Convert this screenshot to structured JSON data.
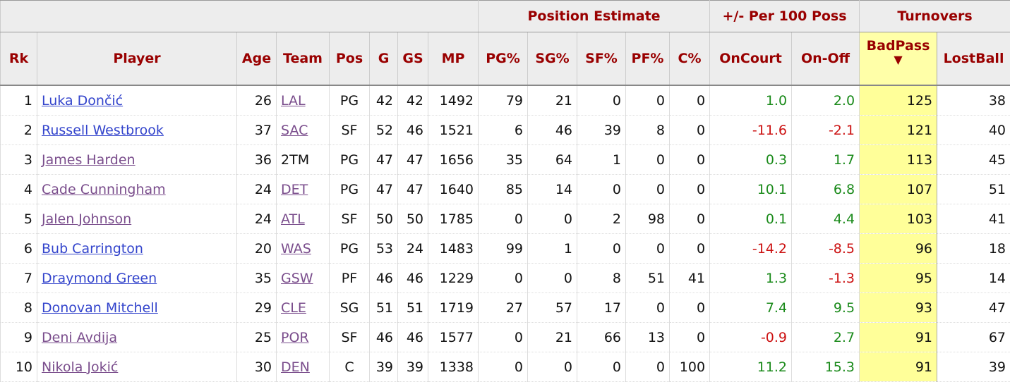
{
  "groups": {
    "position": "Position Estimate",
    "plusminus": "+/- Per 100 Poss",
    "turnovers": "Turnovers"
  },
  "columns": [
    "Rk",
    "Player",
    "Age",
    "Team",
    "Pos",
    "G",
    "GS",
    "MP",
    "PG%",
    "SG%",
    "SF%",
    "PF%",
    "C%",
    "OnCourt",
    "On-Off",
    "BadPass",
    "LostBall"
  ],
  "sort_indicator": "▼",
  "colors": {
    "positive": "#1a8a1a",
    "negative": "#cc1111",
    "sorted_column": "#ffff99",
    "header_text": "#990000"
  },
  "rows": [
    {
      "rk": "1",
      "player": "Luka Dončić",
      "visited": false,
      "age": "26",
      "team": "LAL",
      "team_link": true,
      "pos": "PG",
      "g": "42",
      "gs": "42",
      "mp": "1492",
      "pg": "79",
      "sg": "21",
      "sf": "0",
      "pf": "0",
      "c": "0",
      "oncourt": "1.0",
      "onoff": "2.0",
      "badpass": "125",
      "lostball": "38"
    },
    {
      "rk": "2",
      "player": "Russell Westbrook",
      "visited": false,
      "age": "37",
      "team": "SAC",
      "team_link": true,
      "pos": "SF",
      "g": "52",
      "gs": "46",
      "mp": "1521",
      "pg": "6",
      "sg": "46",
      "sf": "39",
      "pf": "8",
      "c": "0",
      "oncourt": "-11.6",
      "onoff": "-2.1",
      "badpass": "121",
      "lostball": "40"
    },
    {
      "rk": "3",
      "player": "James Harden",
      "visited": true,
      "age": "36",
      "team": "2TM",
      "team_link": false,
      "pos": "PG",
      "g": "47",
      "gs": "47",
      "mp": "1656",
      "pg": "35",
      "sg": "64",
      "sf": "1",
      "pf": "0",
      "c": "0",
      "oncourt": "0.3",
      "onoff": "1.7",
      "badpass": "113",
      "lostball": "45"
    },
    {
      "rk": "4",
      "player": "Cade Cunningham",
      "visited": true,
      "age": "24",
      "team": "DET",
      "team_link": true,
      "pos": "PG",
      "g": "47",
      "gs": "47",
      "mp": "1640",
      "pg": "85",
      "sg": "14",
      "sf": "0",
      "pf": "0",
      "c": "0",
      "oncourt": "10.1",
      "onoff": "6.8",
      "badpass": "107",
      "lostball": "51"
    },
    {
      "rk": "5",
      "player": "Jalen Johnson",
      "visited": true,
      "age": "24",
      "team": "ATL",
      "team_link": true,
      "pos": "SF",
      "g": "50",
      "gs": "50",
      "mp": "1785",
      "pg": "0",
      "sg": "0",
      "sf": "2",
      "pf": "98",
      "c": "0",
      "oncourt": "0.1",
      "onoff": "4.4",
      "badpass": "103",
      "lostball": "41"
    },
    {
      "rk": "6",
      "player": "Bub Carrington",
      "visited": false,
      "age": "20",
      "team": "WAS",
      "team_link": true,
      "pos": "PG",
      "g": "53",
      "gs": "24",
      "mp": "1483",
      "pg": "99",
      "sg": "1",
      "sf": "0",
      "pf": "0",
      "c": "0",
      "oncourt": "-14.2",
      "onoff": "-8.5",
      "badpass": "96",
      "lostball": "18"
    },
    {
      "rk": "7",
      "player": "Draymond Green",
      "visited": false,
      "age": "35",
      "team": "GSW",
      "team_link": true,
      "pos": "PF",
      "g": "46",
      "gs": "46",
      "mp": "1229",
      "pg": "0",
      "sg": "0",
      "sf": "8",
      "pf": "51",
      "c": "41",
      "oncourt": "1.3",
      "onoff": "-1.3",
      "badpass": "95",
      "lostball": "14"
    },
    {
      "rk": "8",
      "player": "Donovan Mitchell",
      "visited": false,
      "age": "29",
      "team": "CLE",
      "team_link": true,
      "pos": "SG",
      "g": "51",
      "gs": "51",
      "mp": "1719",
      "pg": "27",
      "sg": "57",
      "sf": "17",
      "pf": "0",
      "c": "0",
      "oncourt": "7.4",
      "onoff": "9.5",
      "badpass": "93",
      "lostball": "47"
    },
    {
      "rk": "9",
      "player": "Deni Avdija",
      "visited": true,
      "age": "25",
      "team": "POR",
      "team_link": true,
      "pos": "SF",
      "g": "46",
      "gs": "46",
      "mp": "1577",
      "pg": "0",
      "sg": "21",
      "sf": "66",
      "pf": "13",
      "c": "0",
      "oncourt": "-0.9",
      "onoff": "2.7",
      "badpass": "91",
      "lostball": "67"
    },
    {
      "rk": "10",
      "player": "Nikola Jokić",
      "visited": true,
      "age": "30",
      "team": "DEN",
      "team_link": true,
      "pos": "C",
      "g": "39",
      "gs": "39",
      "mp": "1338",
      "pg": "0",
      "sg": "0",
      "sf": "0",
      "pf": "0",
      "c": "100",
      "oncourt": "11.2",
      "onoff": "15.3",
      "badpass": "91",
      "lostball": "39"
    }
  ]
}
